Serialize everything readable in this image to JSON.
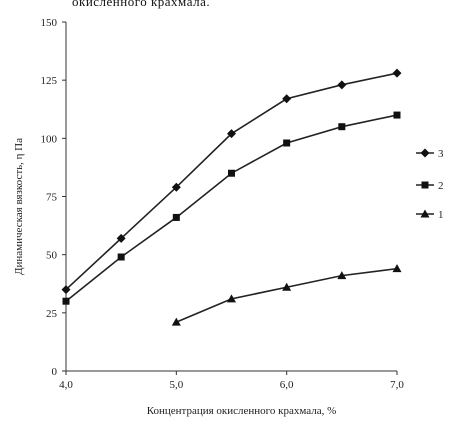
{
  "caption": "окисленного крахмала.",
  "chart_data": {
    "type": "line",
    "xlabel": "Концентрация окисленного крахмала, %",
    "ylabel": "Динамическая вязкость, η Па",
    "x_ticks": [
      "4,0",
      "5,0",
      "6,0",
      "7,0"
    ],
    "y_ticks": [
      "0",
      "25",
      "50",
      "75",
      "100",
      "125",
      "150"
    ],
    "xlim": [
      4.0,
      7.0
    ],
    "ylim": [
      0,
      150
    ],
    "grid": false,
    "legend_position": "right",
    "series": [
      {
        "name": "3",
        "marker": "diamond",
        "points": [
          [
            4.0,
            35
          ],
          [
            4.5,
            57
          ],
          [
            5.0,
            79
          ],
          [
            5.5,
            102
          ],
          [
            6.0,
            117
          ],
          [
            6.5,
            123
          ],
          [
            7.0,
            128
          ]
        ]
      },
      {
        "name": "2",
        "marker": "square",
        "points": [
          [
            4.0,
            30
          ],
          [
            4.5,
            49
          ],
          [
            5.0,
            66
          ],
          [
            5.5,
            85
          ],
          [
            6.0,
            98
          ],
          [
            6.5,
            105
          ],
          [
            7.0,
            110
          ]
        ]
      },
      {
        "name": "1",
        "marker": "triangle",
        "points": [
          [
            5.0,
            21
          ],
          [
            5.5,
            31
          ],
          [
            6.0,
            36
          ],
          [
            6.5,
            41
          ],
          [
            7.0,
            44
          ]
        ]
      }
    ]
  }
}
